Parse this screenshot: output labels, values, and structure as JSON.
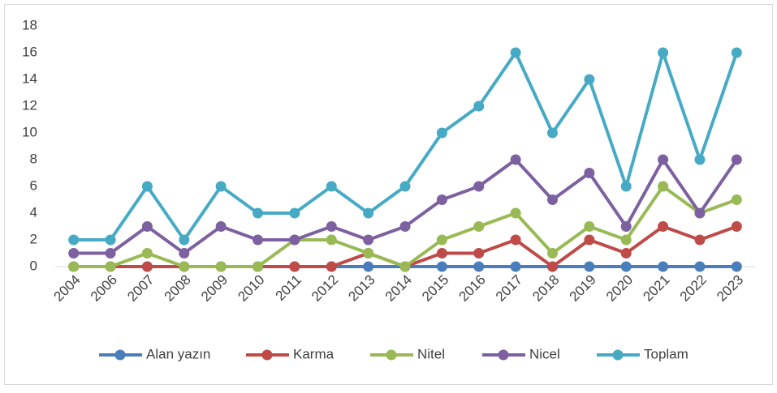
{
  "chart_data": {
    "type": "line",
    "categories": [
      "2004",
      "2006",
      "2007",
      "2008",
      "2009",
      "2010",
      "2011",
      "2012",
      "2013",
      "2014",
      "2015",
      "2016",
      "2017",
      "2018",
      "2019",
      "2020",
      "2021",
      "2022",
      "2023"
    ],
    "series": [
      {
        "name": "Alan yazın",
        "color": "#4a7ebb",
        "values": [
          0,
          0,
          0,
          0,
          0,
          0,
          0,
          0,
          0,
          0,
          0,
          0,
          0,
          0,
          0,
          0,
          0,
          0,
          0
        ]
      },
      {
        "name": "Karma",
        "color": "#be4b48",
        "values": [
          0,
          0,
          0,
          0,
          0,
          0,
          0,
          0,
          1,
          0,
          1,
          1,
          2,
          0,
          2,
          1,
          3,
          2,
          3
        ]
      },
      {
        "name": "Nitel",
        "color": "#98b954",
        "values": [
          0,
          0,
          1,
          0,
          0,
          0,
          2,
          2,
          1,
          0,
          2,
          3,
          4,
          1,
          3,
          2,
          6,
          4,
          5
        ]
      },
      {
        "name": "Nicel",
        "color": "#7d60a0",
        "values": [
          1,
          1,
          3,
          1,
          3,
          2,
          2,
          3,
          2,
          3,
          5,
          6,
          8,
          5,
          7,
          3,
          8,
          4,
          8
        ]
      },
      {
        "name": "Toplam",
        "color": "#46aac5",
        "values": [
          2,
          2,
          6,
          2,
          6,
          4,
          4,
          6,
          4,
          6,
          10,
          12,
          16,
          10,
          14,
          6,
          16,
          8,
          16
        ]
      }
    ],
    "ylim": [
      0,
      18
    ],
    "yticks": [
      0,
      2,
      4,
      6,
      8,
      10,
      12,
      14,
      16,
      18
    ],
    "legend": "bottom"
  }
}
